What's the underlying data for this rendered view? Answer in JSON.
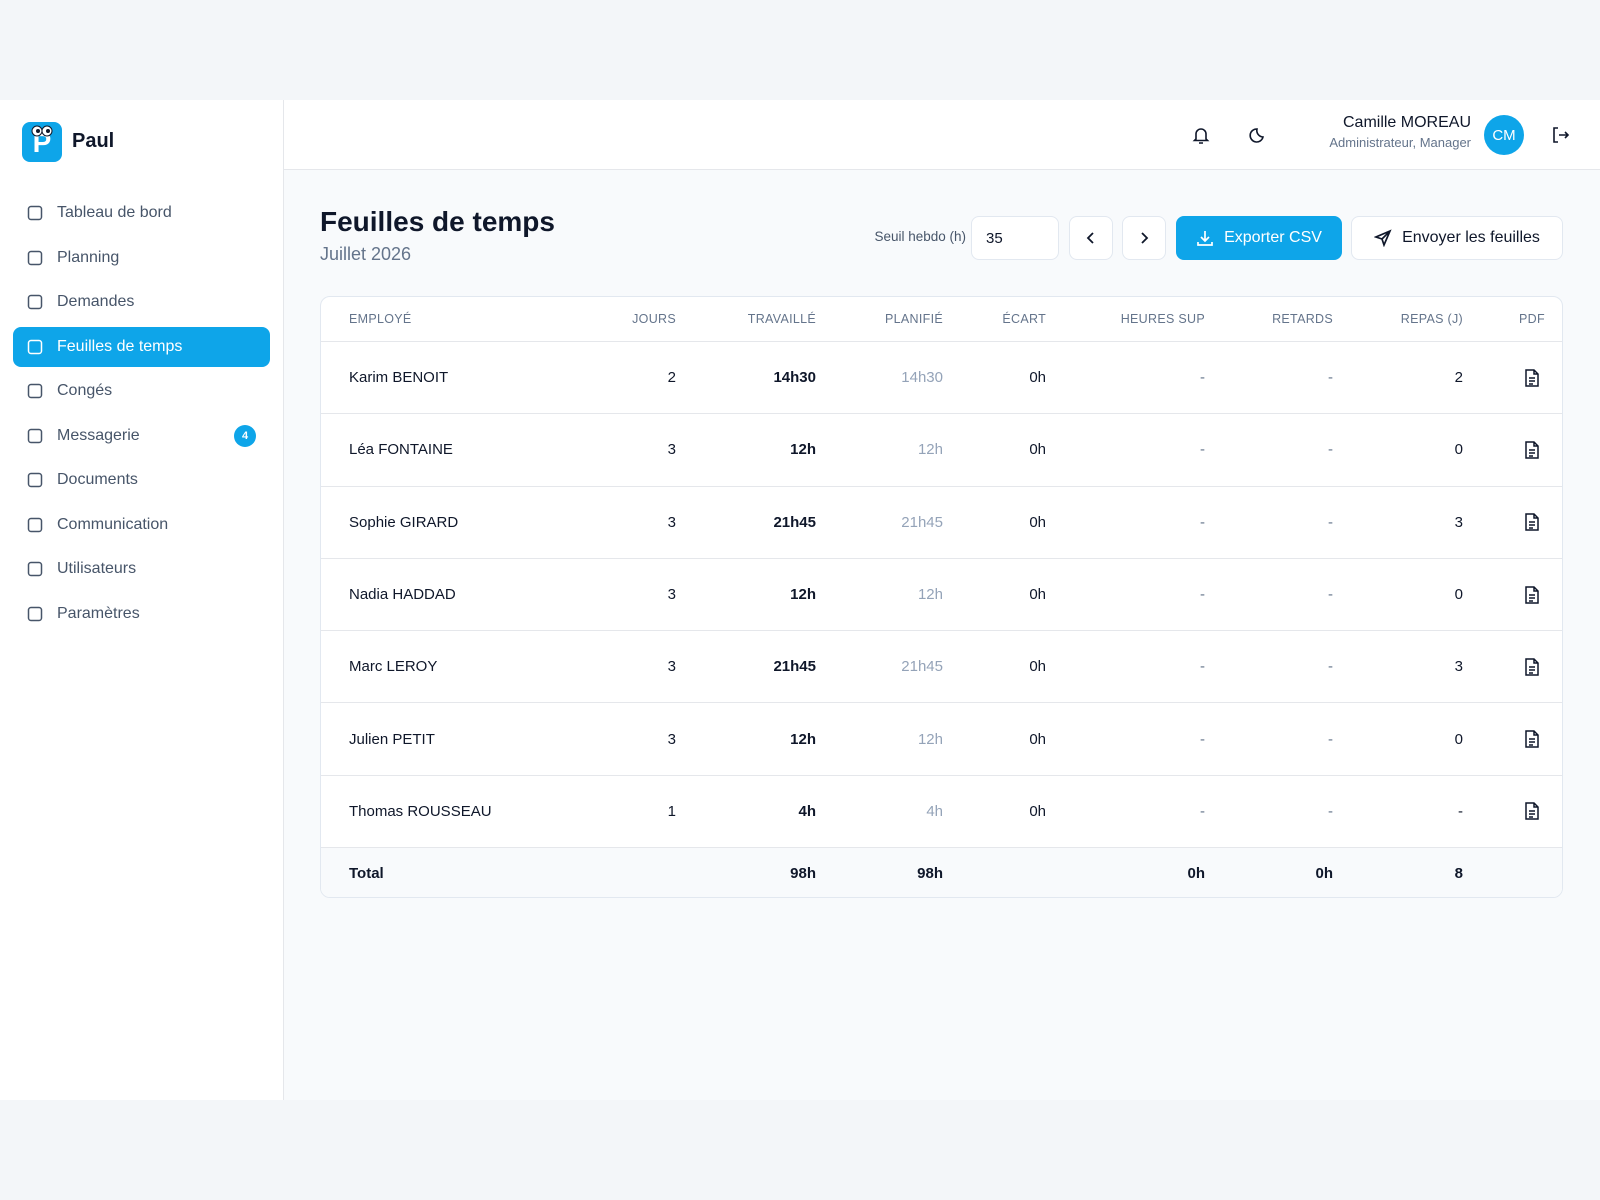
{
  "brand": "Paul",
  "nav": [
    {
      "label": "Tableau de bord"
    },
    {
      "label": "Planning"
    },
    {
      "label": "Demandes"
    },
    {
      "label": "Feuilles de temps"
    },
    {
      "label": "Congés"
    },
    {
      "label": "Messagerie",
      "badge": "4"
    },
    {
      "label": "Documents"
    },
    {
      "label": "Communication"
    },
    {
      "label": "Utilisateurs"
    },
    {
      "label": "Paramètres"
    }
  ],
  "header": {
    "user_name": "Camille MOREAU",
    "user_role": "Administrateur, Manager",
    "initials": "CM"
  },
  "page": {
    "title": "Feuilles de temps",
    "subtitle": "Juillet 2026",
    "threshold_label": "Seuil hebdo (h)",
    "threshold_value": "35",
    "export_button": "Exporter CSV",
    "send_button": "Envoyer les feuilles"
  },
  "table": {
    "headers": [
      "EMPLOYÉ",
      "JOURS",
      "TRAVAILLÉ",
      "PLANIFIÉ",
      "ÉCART",
      "HEURES SUP",
      "RETARDS",
      "REPAS (J)",
      "PDF"
    ],
    "rows": [
      [
        "Karim BENOIT",
        "2",
        "14h30",
        "14h30",
        "0h",
        "-",
        "-",
        "2"
      ],
      [
        "Léa FONTAINE",
        "3",
        "12h",
        "12h",
        "0h",
        "-",
        "-",
        "0"
      ],
      [
        "Sophie GIRARD",
        "3",
        "21h45",
        "21h45",
        "0h",
        "-",
        "-",
        "3"
      ],
      [
        "Nadia HADDAD",
        "3",
        "12h",
        "12h",
        "0h",
        "-",
        "-",
        "0"
      ],
      [
        "Marc LEROY",
        "3",
        "21h45",
        "21h45",
        "0h",
        "-",
        "-",
        "3"
      ],
      [
        "Julien PETIT",
        "3",
        "12h",
        "12h",
        "0h",
        "-",
        "-",
        "0"
      ],
      [
        "Thomas ROUSSEAU",
        "1",
        "4h",
        "4h",
        "0h",
        "-",
        "-",
        "-"
      ]
    ],
    "total": {
      "label": "Total",
      "travaille": "98h",
      "planifie": "98h",
      "heures_sup": "0h",
      "retards": "0h",
      "repas": "8"
    }
  }
}
